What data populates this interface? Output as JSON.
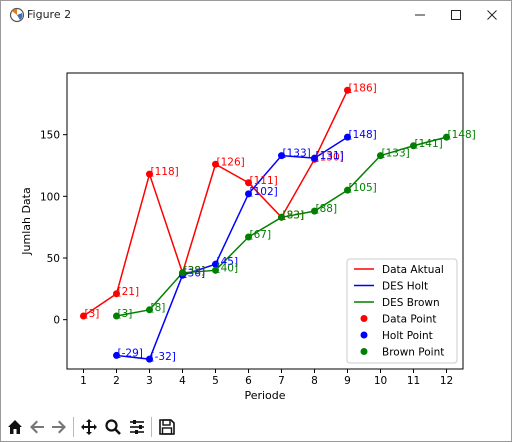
{
  "window": {
    "title": "Figure 2"
  },
  "toolbar": {
    "icons": [
      "home-icon",
      "back-icon",
      "forward-icon",
      "pan-icon",
      "zoom-icon",
      "configure-icon",
      "save-icon"
    ]
  },
  "chart_data": {
    "type": "line",
    "title": "",
    "xlabel": "Periode",
    "ylabel": "Jumlah Data",
    "xlim": [
      0.5,
      12.5
    ],
    "ylim": [
      -40,
      200
    ],
    "xticks": [
      1,
      2,
      3,
      4,
      5,
      6,
      7,
      8,
      9,
      10,
      11,
      12
    ],
    "yticks": [
      0,
      50,
      100,
      150
    ],
    "grid": false,
    "legend_position": "lower-right",
    "series": [
      {
        "name": "Data Aktual",
        "point_name": "Data Point",
        "color": "#ff0000",
        "x": [
          1,
          2,
          3,
          4,
          5,
          6,
          7,
          8,
          9
        ],
        "y": [
          3,
          21,
          118,
          38,
          126,
          111,
          83,
          130,
          186
        ],
        "labels": [
          "[3]",
          "[21]",
          "[118]",
          "[38]",
          "[126]",
          "[111]",
          "[83]",
          "[130]",
          "[186]"
        ]
      },
      {
        "name": "DES Holt",
        "point_name": "Holt Point",
        "color": "#0000ff",
        "x": [
          2,
          3,
          4,
          5,
          6,
          7,
          8,
          9
        ],
        "y": [
          -29,
          -32,
          36,
          45,
          102,
          133,
          131,
          148
        ],
        "labels": [
          "[-29]",
          "[-32]",
          "[36]",
          "[45]",
          "[102]",
          "[133]",
          "[131]",
          "[148]"
        ]
      },
      {
        "name": "DES Brown",
        "point_name": "Brown Point",
        "color": "#008000",
        "x": [
          2,
          3,
          4,
          5,
          6,
          7,
          8,
          9,
          10,
          11,
          12
        ],
        "y": [
          3,
          8,
          38,
          40,
          67,
          83,
          88,
          105,
          133,
          141,
          148
        ],
        "labels": [
          "[3]",
          "[8]",
          "[38]",
          "[40]",
          "[67]",
          "[83]",
          "[88]",
          "[105]",
          "[133]",
          "[141]",
          "[148]"
        ]
      }
    ]
  }
}
